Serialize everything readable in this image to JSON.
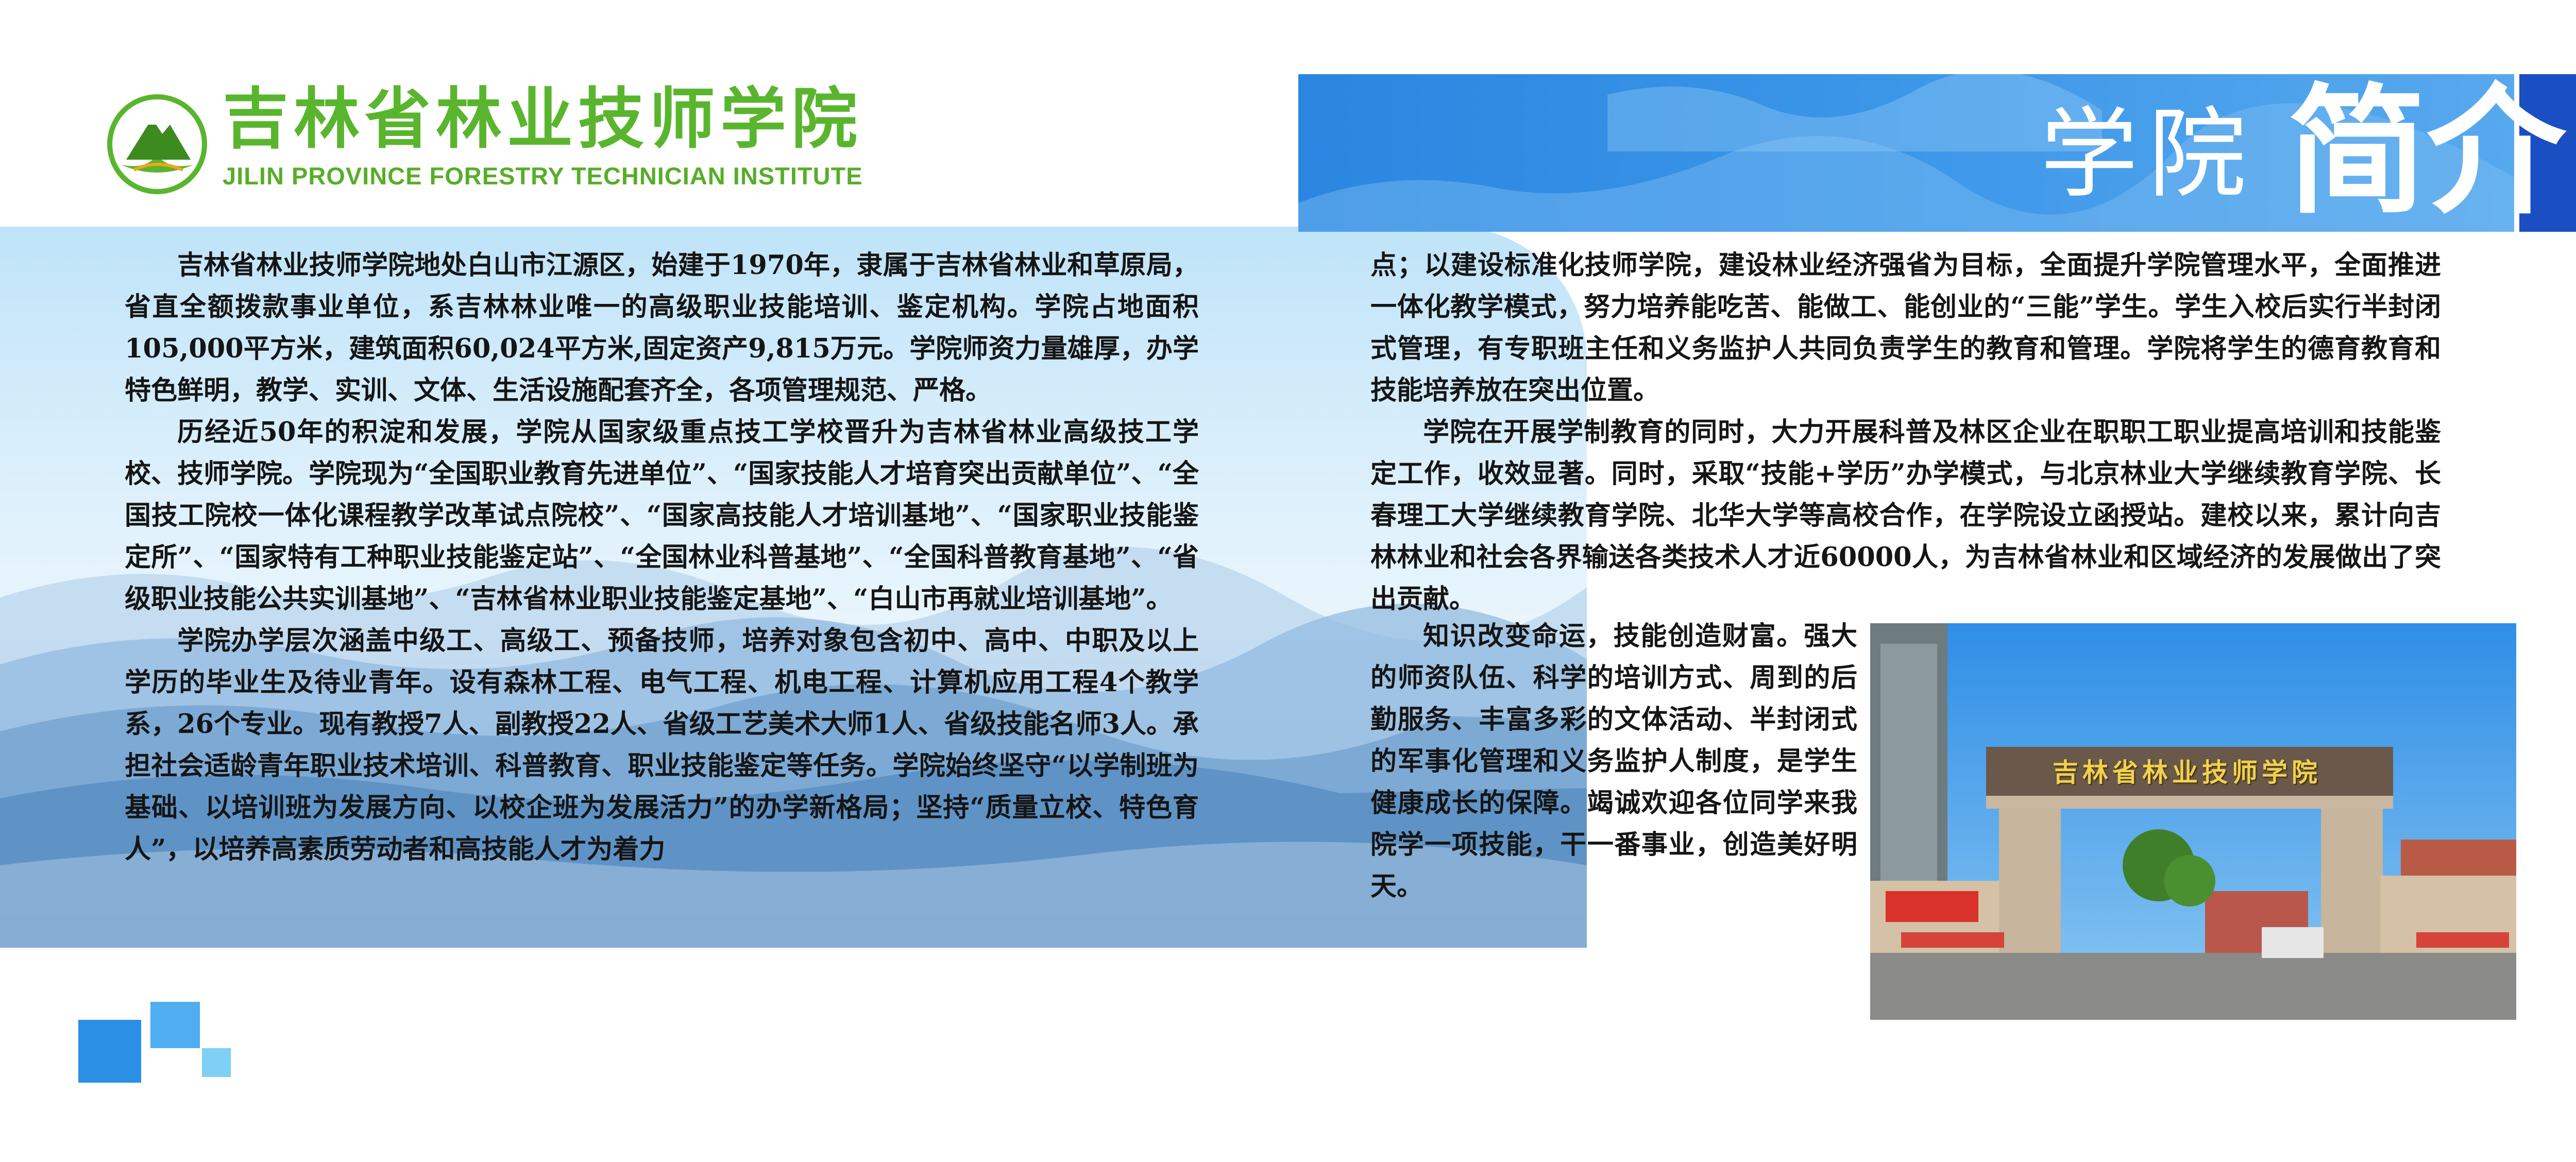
{
  "header": {
    "school_name_cn": "吉林省林业技师学院",
    "school_name_en": "JILIN PROVINCE FORESTRY TECHNICIAN INSTITUTE",
    "title_part1": "学院",
    "title_part2": "简介"
  },
  "left_column": {
    "paragraphs": [
      "吉林省林业技师学院地处白山市江源区，始建于1970年，隶属于吉林省林业和草原局，省直全额拨款事业单位，系吉林林业唯一的高级职业技能培训、鉴定机构。学院占地面积105,000平方米，建筑面积60,024平方米,固定资产9,815万元。学院师资力量雄厚，办学特色鲜明，教学、实训、文体、生活设施配套齐全，各项管理规范、严格。",
      "历经近50年的积淀和发展，学院从国家级重点技工学校晋升为吉林省林业高级技工学校、技师学院。学院现为“全国职业教育先进单位”、“国家技能人才培育突出贡献单位”、“全国技工院校一体化课程教学改革试点院校”、“国家高技能人才培训基地”、“国家职业技能鉴定所”、“国家特有工种职业技能鉴定站”、“全国林业科普基地”、“全国科普教育基地”、“省级职业技能公共实训基地”、“吉林省林业职业技能鉴定基地”、“白山市再就业培训基地”。",
      "学院办学层次涵盖中级工、高级工、预备技师，培养对象包含初中、高中、中职及以上学历的毕业生及待业青年。设有森林工程、电气工程、机电工程、计算机应用工程4个教学系，26个专业。现有教授7人、副教授22人、省级工艺美术大师1人、省级技能名师3人。承担社会适龄青年职业技术培训、科普教育、职业技能鉴定等任务。学院始终坚守“以学制班为基础、以培训班为发展方向、以校企班为发展活力”的办学新格局；坚持“质量立校、特色育人”，以培养高素质劳动者和高技能人才为着力"
    ]
  },
  "right_column": {
    "continuation": "点；以建设标准化技师学院，建设林业经济强省为目标，全面提升学院管理水平，全面推进一体化教学模式，努力培养能吃苦、能做工、能创业的“三能”学生。学生入校后实行半封闭式管理，有专职班主任和义务监护人共同负责学生的教育和管理。学院将学生的德育教育和技能培养放在突出位置。",
    "paragraph2": "学院在开展学制教育的同时，大力开展科普及林区企业在职职工职业提高培训和技能鉴定工作，收效显著。同时，采取“技能+学历”办学模式，与北京林业大学继续教育学院、长春理工大学继续教育学院、北华大学等高校合作，在学院设立函授站。建校以来，累计向吉林林业和社会各界输送各类技术人才近60000人，为吉林省林业和区域经济的发展做出了突出贡献。",
    "paragraph3": "知识改变命运，技能创造财富。强大的师资队伍、科学的培训方式、周到的后勤服务、丰富多彩的文体活动、半封闭式的军事化管理和义务监护人制度，是学生健康成长的保障。竭诚欢迎各位同学来我院学一项技能，干一番事业，创造美好明天。"
  },
  "photo": {
    "gate_sign": "吉林省林业技师学院"
  },
  "colors": {
    "brand_green": "#5ab52e",
    "banner_blue": "#2a86e0",
    "banner_stripe": "#1a4fc4"
  }
}
